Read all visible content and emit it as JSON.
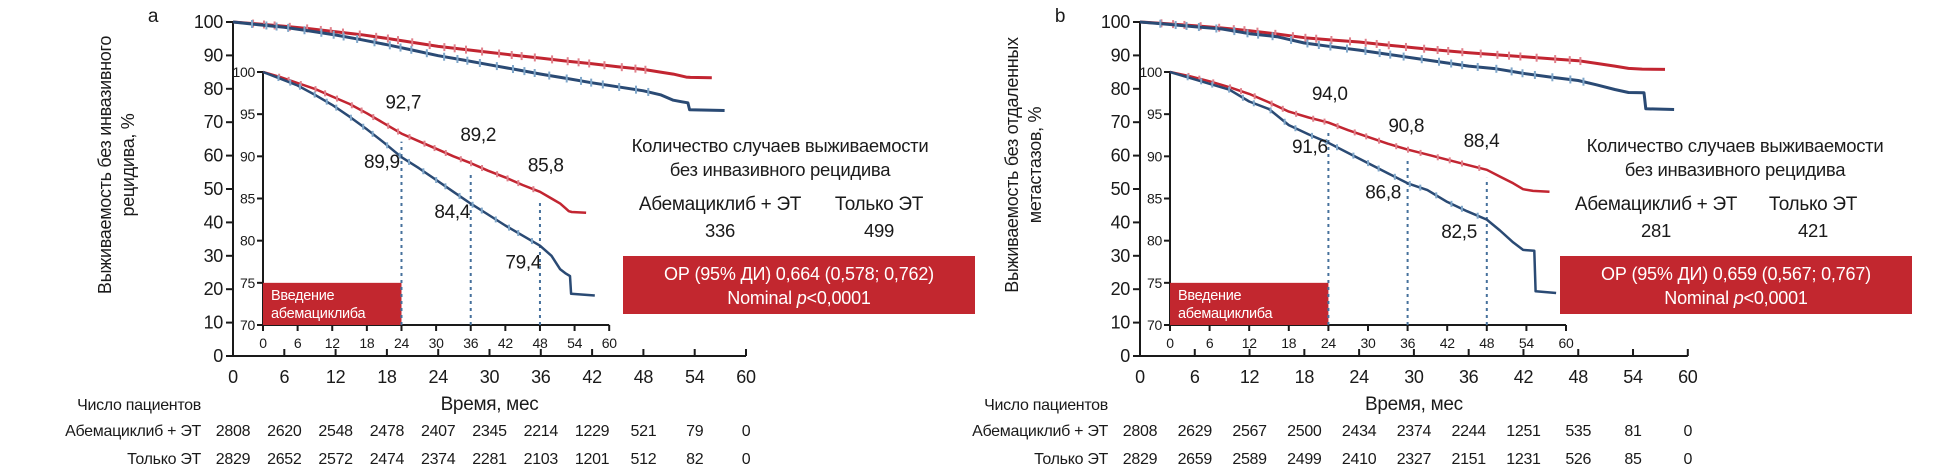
{
  "colors": {
    "red": "#c22531",
    "red_box": "#c2272f",
    "red_censor": "#e0808b",
    "blue": "#2a4a74",
    "blue_text": "#3f6b97",
    "blue_censor": "#7fa6c9",
    "dash": "#46719c",
    "axis": "#1a1a1a",
    "white": "#ffffff"
  },
  "chart_data": [
    {
      "type": "line",
      "panel_label": "a",
      "ylabel_lines": [
        "Выживаемость без инвазивного",
        "рецидива, %"
      ],
      "xlabel": "Время, мес",
      "x_ticks": [
        0,
        6,
        12,
        18,
        24,
        30,
        36,
        42,
        48,
        54,
        60
      ],
      "main_ylim": [
        0,
        100
      ],
      "main_yticks": [
        0,
        10,
        20,
        30,
        40,
        50,
        60,
        70,
        80,
        90,
        100
      ],
      "inset_ylim": [
        70,
        100
      ],
      "inset_yticks": [
        70,
        75,
        80,
        85,
        90,
        95,
        100
      ],
      "dashed_months": [
        24,
        36,
        48
      ],
      "series": [
        {
          "name": "Абемациклиб + ЭТ",
          "color_key": "red",
          "points": [
            [
              0,
              100
            ],
            [
              3,
              99.4
            ],
            [
              6,
              98.7
            ],
            [
              9,
              98.0
            ],
            [
              12,
              97.1
            ],
            [
              15,
              96.2
            ],
            [
              18,
              95.1
            ],
            [
              21,
              93.9
            ],
            [
              24,
              92.7
            ],
            [
              27,
              91.8
            ],
            [
              30,
              90.9
            ],
            [
              33,
              90.0
            ],
            [
              36,
              89.2
            ],
            [
              39,
              88.3
            ],
            [
              42,
              87.5
            ],
            [
              45,
              86.6
            ],
            [
              48,
              85.8
            ],
            [
              50,
              85.0
            ],
            [
              51.5,
              84.4
            ],
            [
              52.5,
              83.8
            ],
            [
              53,
              83.5
            ],
            [
              53.5,
              83.4
            ],
            [
              56,
              83.3
            ]
          ],
          "milestones": [
            {
              "v": "92,7",
              "month": 24,
              "lx": 24.3,
              "lp": 95.7
            },
            {
              "v": "89,2",
              "month": 36,
              "lx": 37.3,
              "lp": 91.8
            },
            {
              "v": "85,8",
              "month": 48,
              "lx": 49.0,
              "lp": 88.2
            }
          ]
        },
        {
          "name": "Только ЭТ",
          "color_key": "blue",
          "points": [
            [
              0,
              100
            ],
            [
              3,
              99.2
            ],
            [
              6,
              98.4
            ],
            [
              9,
              97.3
            ],
            [
              12,
              96.1
            ],
            [
              15,
              94.7
            ],
            [
              18,
              93.2
            ],
            [
              21,
              91.6
            ],
            [
              24,
              89.9
            ],
            [
              27,
              88.6
            ],
            [
              30,
              87.2
            ],
            [
              33,
              85.8
            ],
            [
              36,
              84.4
            ],
            [
              39,
              83.1
            ],
            [
              42,
              81.8
            ],
            [
              45,
              80.6
            ],
            [
              48,
              79.4
            ],
            [
              50,
              78.2
            ],
            [
              51.5,
              76.6
            ],
            [
              52.5,
              76.1
            ],
            [
              53.2,
              75.8
            ],
            [
              53.4,
              73.7
            ],
            [
              57.5,
              73.5
            ]
          ],
          "milestones": [
            {
              "v": "89,9",
              "month": 24,
              "lx": 20.6,
              "lp": 88.6
            },
            {
              "v": "84,4",
              "month": 36,
              "lx": 32.8,
              "lp": 82.7
            },
            {
              "v": "79,4",
              "month": 48,
              "lx": 45.1,
              "lp": 76.7
            }
          ]
        }
      ],
      "intro_box": {
        "lines": [
          "Введение",
          "абемациклиба"
        ],
        "month_span": [
          0,
          24
        ],
        "pct_span": [
          70,
          75
        ]
      },
      "events": {
        "title_lines": [
          "Количество случаев выживаемости",
          "без инвазивного рецидива"
        ],
        "cols": [
          {
            "label": "Абемациклиб + ЭТ",
            "value": "336",
            "color_key": "red"
          },
          {
            "label": "Только ЭТ",
            "value": "499",
            "color_key": "blue_text"
          }
        ]
      },
      "stat_box": {
        "line1": "ОР (95% ДИ) 0,664 (0,578; 0,762)",
        "line2_pre": "Nominal ",
        "line2_italic": "p",
        "line2_post": "<0,0001"
      },
      "risk": {
        "header": "Число пациентов",
        "months": [
          0,
          6,
          12,
          18,
          24,
          30,
          36,
          42,
          48,
          54,
          60
        ],
        "rows": [
          {
            "label": "Абемациклиб + ЭТ",
            "color_key": "red",
            "values": [
              2808,
              2620,
              2548,
              2478,
              2407,
              2345,
              2214,
              1229,
              521,
              79,
              0
            ]
          },
          {
            "label": "Только ЭТ",
            "color_key": "blue_text",
            "values": [
              2829,
              2652,
              2572,
              2474,
              2374,
              2281,
              2103,
              1201,
              512,
              82,
              0
            ]
          }
        ]
      }
    },
    {
      "type": "line",
      "panel_label": "b",
      "ylabel_lines": [
        "Выживаемость без отдаленных",
        "метастазов, %"
      ],
      "xlabel": "Время, мес",
      "x_ticks": [
        0,
        6,
        12,
        18,
        24,
        30,
        36,
        42,
        48,
        54,
        60
      ],
      "main_ylim": [
        0,
        100
      ],
      "main_yticks": [
        0,
        10,
        20,
        30,
        40,
        50,
        60,
        70,
        80,
        90,
        100
      ],
      "inset_ylim": [
        70,
        100
      ],
      "inset_yticks": [
        70,
        75,
        80,
        85,
        90,
        95,
        100
      ],
      "dashed_months": [
        24,
        36,
        48
      ],
      "series": [
        {
          "name": "Абемациклиб + ЭТ",
          "color_key": "red",
          "points": [
            [
              0,
              100
            ],
            [
              3,
              99.5
            ],
            [
              6,
              98.9
            ],
            [
              9,
              98.2
            ],
            [
              12,
              97.4
            ],
            [
              15,
              96.4
            ],
            [
              18,
              95.3
            ],
            [
              21,
              94.6
            ],
            [
              24,
              94.0
            ],
            [
              27,
              93.1
            ],
            [
              30,
              92.3
            ],
            [
              33,
              91.5
            ],
            [
              36,
              90.8
            ],
            [
              39,
              90.2
            ],
            [
              42,
              89.6
            ],
            [
              45,
              89.0
            ],
            [
              48,
              88.4
            ],
            [
              50,
              87.6
            ],
            [
              52,
              86.8
            ],
            [
              53.5,
              86.1
            ],
            [
              55,
              85.9
            ],
            [
              57.5,
              85.8
            ]
          ],
          "milestones": [
            {
              "v": "94,0",
              "month": 24,
              "lx": 24.2,
              "lp": 96.7
            },
            {
              "v": "90,8",
              "month": 36,
              "lx": 35.8,
              "lp": 92.9
            },
            {
              "v": "88,4",
              "month": 48,
              "lx": 47.2,
              "lp": 91.1
            }
          ]
        },
        {
          "name": "Только ЭТ",
          "color_key": "blue",
          "points": [
            [
              0,
              100
            ],
            [
              3,
              99.3
            ],
            [
              6,
              98.6
            ],
            [
              9,
              97.9
            ],
            [
              12,
              96.5
            ],
            [
              15,
              95.6
            ],
            [
              18,
              93.7
            ],
            [
              21,
              92.6
            ],
            [
              24,
              91.6
            ],
            [
              27,
              90.4
            ],
            [
              30,
              89.2
            ],
            [
              33,
              88.0
            ],
            [
              36,
              86.8
            ],
            [
              39,
              86.0
            ],
            [
              42,
              84.6
            ],
            [
              45,
              83.5
            ],
            [
              48,
              82.5
            ],
            [
              50,
              81.2
            ],
            [
              52,
              79.8
            ],
            [
              53.5,
              78.9
            ],
            [
              55.2,
              78.8
            ],
            [
              55.4,
              74.0
            ],
            [
              58.5,
              73.8
            ]
          ],
          "milestones": [
            {
              "v": "91,6",
              "month": 24,
              "lx": 21.2,
              "lp": 90.4
            },
            {
              "v": "86,8",
              "month": 36,
              "lx": 32.3,
              "lp": 85.0
            },
            {
              "v": "82,5",
              "month": 48,
              "lx": 43.8,
              "lp": 80.3
            }
          ]
        }
      ],
      "intro_box": {
        "lines": [
          "Введение",
          "абемациклиба"
        ],
        "month_span": [
          0,
          24
        ],
        "pct_span": [
          70,
          75
        ]
      },
      "events": {
        "title_lines": [
          "Количество случаев выживаемости",
          "без инвазивного рецидива"
        ],
        "cols": [
          {
            "label": "Абемациклиб + ЭТ",
            "value": "281",
            "color_key": "red"
          },
          {
            "label": "Только ЭТ",
            "value": "421",
            "color_key": "blue_text"
          }
        ]
      },
      "stat_box": {
        "line1": "ОР (95% ДИ) 0,659 (0,567; 0,767)",
        "line2_pre": "Nominal ",
        "line2_italic": "p",
        "line2_post": "<0,0001"
      },
      "risk": {
        "header": "Число пациентов",
        "months": [
          0,
          6,
          12,
          18,
          24,
          30,
          36,
          42,
          48,
          54,
          60
        ],
        "rows": [
          {
            "label": "Абемациклиб + ЭТ",
            "color_key": "red",
            "values": [
              2808,
              2629,
              2567,
              2500,
              2434,
              2374,
              2244,
              1251,
              535,
              81,
              0
            ]
          },
          {
            "label": "Только ЭТ",
            "color_key": "blue_text",
            "values": [
              2829,
              2659,
              2589,
              2499,
              2410,
              2327,
              2151,
              1231,
              526,
              85,
              0
            ]
          }
        ]
      }
    }
  ]
}
